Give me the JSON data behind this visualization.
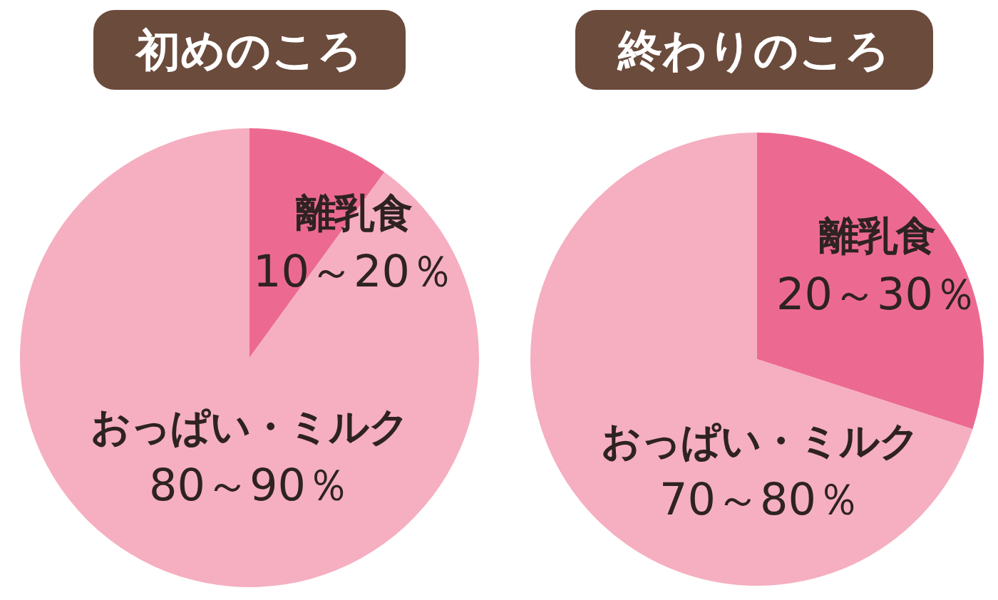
{
  "chart_data": [
    {
      "type": "pie",
      "title": "初めのころ",
      "categories": [
        "離乳食",
        "おっぱい・ミルク"
      ],
      "values": [
        10,
        90
      ],
      "colors": [
        "#ec6a91",
        "#f5afc0"
      ],
      "value_labels": [
        "10～20％",
        "80～90％"
      ]
    },
    {
      "type": "pie",
      "title": "終わりのころ",
      "categories": [
        "離乳食",
        "おっぱい・ミルク"
      ],
      "values": [
        30,
        70
      ],
      "colors": [
        "#ec6a91",
        "#f5afc0"
      ],
      "value_labels": [
        "20～30％",
        "70～80％"
      ]
    }
  ]
}
